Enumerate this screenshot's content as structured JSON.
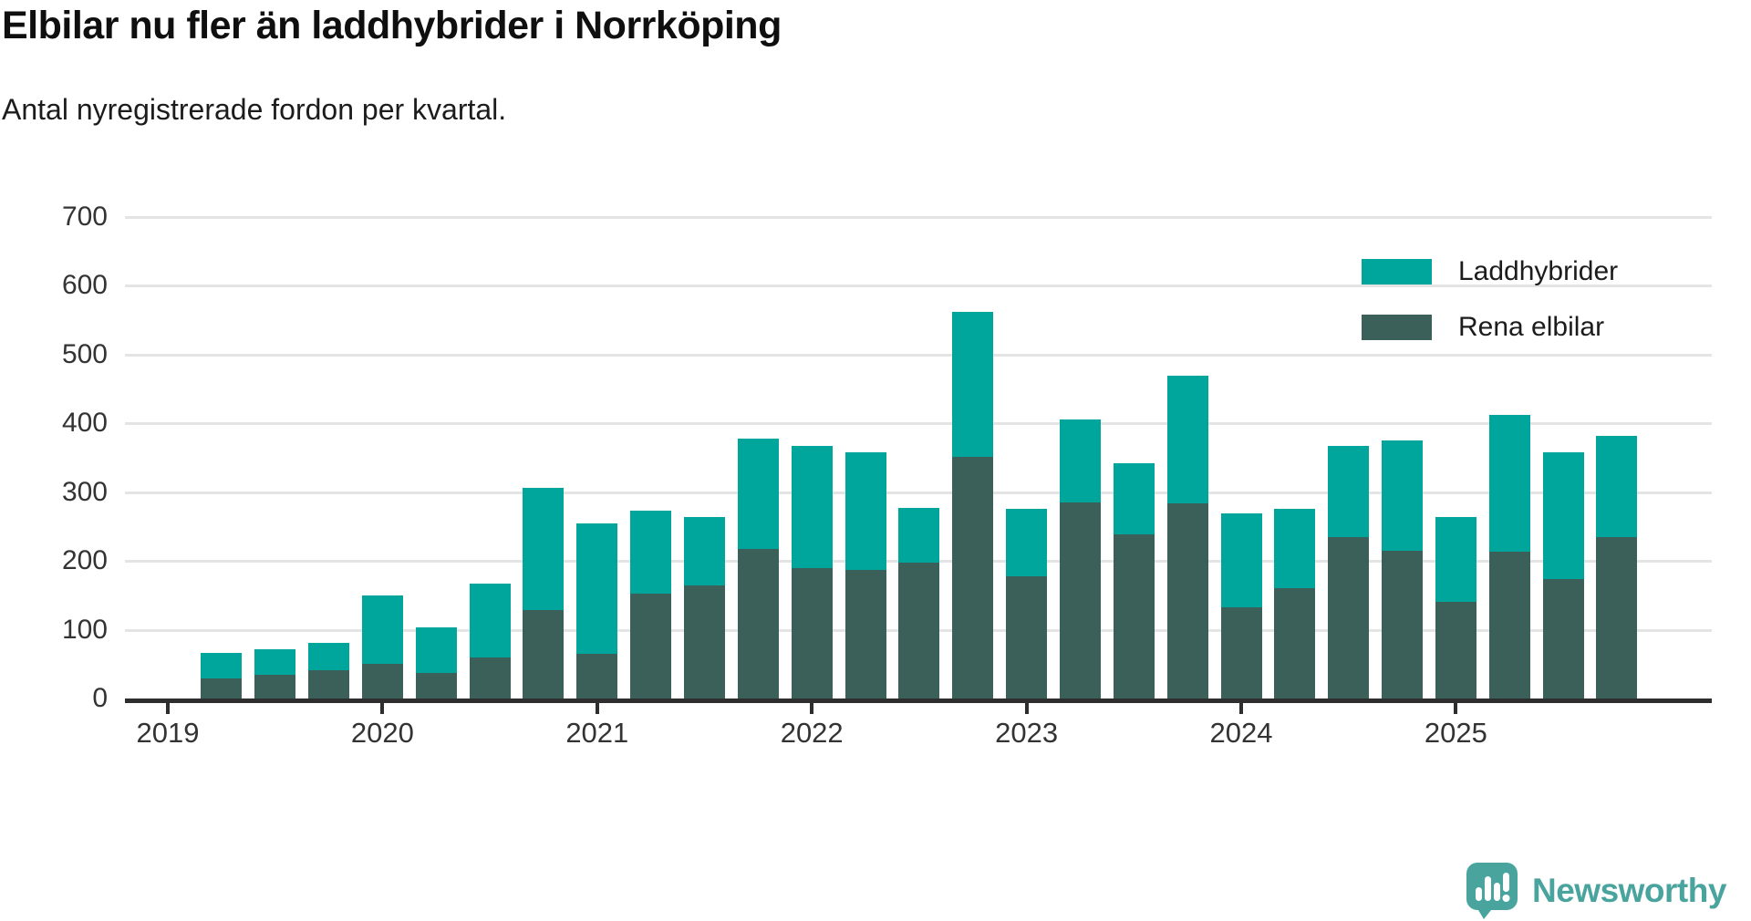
{
  "title": "Elbilar nu fler än laddhybrider i Norrköping",
  "subtitle": "Antal nyregistrerade fordon per kvartal.",
  "legend": {
    "items": [
      {
        "label": "Laddhybrider",
        "color": "#00a69c"
      },
      {
        "label": "Rena elbilar",
        "color": "#3a6059"
      }
    ]
  },
  "branding": {
    "name": "Newsworthy",
    "color": "#4aa49e",
    "icon": "speech-bubble-bar-chart-icon"
  },
  "colors": {
    "laddhybrider": "#00a69c",
    "rena_elbilar": "#3a6059",
    "axis": "#2e2e2e",
    "gridline": "#e4e4e4",
    "text": "#333333"
  },
  "chart_data": {
    "type": "bar",
    "stacked": true,
    "title": "Elbilar nu fler än laddhybrider i Norrköping",
    "subtitle": "Antal nyregistrerade fordon per kvartal.",
    "categories": [
      "2019 Q2",
      "2019 Q3",
      "2019 Q4",
      "2020 Q1",
      "2020 Q2",
      "2020 Q3",
      "2020 Q4",
      "2021 Q1",
      "2021 Q2",
      "2021 Q3",
      "2021 Q4",
      "2022 Q1",
      "2022 Q2",
      "2022 Q3",
      "2022 Q4",
      "2023 Q1",
      "2023 Q2",
      "2023 Q3",
      "2023 Q4",
      "2024 Q1",
      "2024 Q2",
      "2024 Q3",
      "2024 Q4",
      "2025 Q1",
      "2025 Q2",
      "2025 Q3",
      "2025 Q4"
    ],
    "series": [
      {
        "name": "Rena elbilar",
        "color": "#3a6059",
        "values": [
          29,
          35,
          41,
          50,
          37,
          59,
          128,
          65,
          153,
          165,
          217,
          190,
          187,
          198,
          351,
          177,
          285,
          238,
          283,
          133,
          160,
          234,
          215,
          141,
          213,
          173,
          234
        ]
      },
      {
        "name": "Laddhybrider",
        "color": "#00a69c",
        "values": [
          37,
          37,
          40,
          100,
          66,
          108,
          177,
          190,
          121,
          100,
          161,
          178,
          171,
          79,
          211,
          98,
          120,
          103,
          185,
          137,
          115,
          132,
          160,
          123,
          199,
          184,
          147
        ]
      }
    ],
    "x_tick_labels": [
      "2019",
      "2020",
      "2021",
      "2022",
      "2023",
      "2024",
      "2025"
    ],
    "first_bar_quarter_offset": 1,
    "y_ticks": [
      0,
      100,
      200,
      300,
      400,
      500,
      600,
      700
    ],
    "ylim": [
      0,
      700
    ],
    "xlabel": "",
    "ylabel": "",
    "grid": "horizontal",
    "legend_position": "top-right"
  }
}
